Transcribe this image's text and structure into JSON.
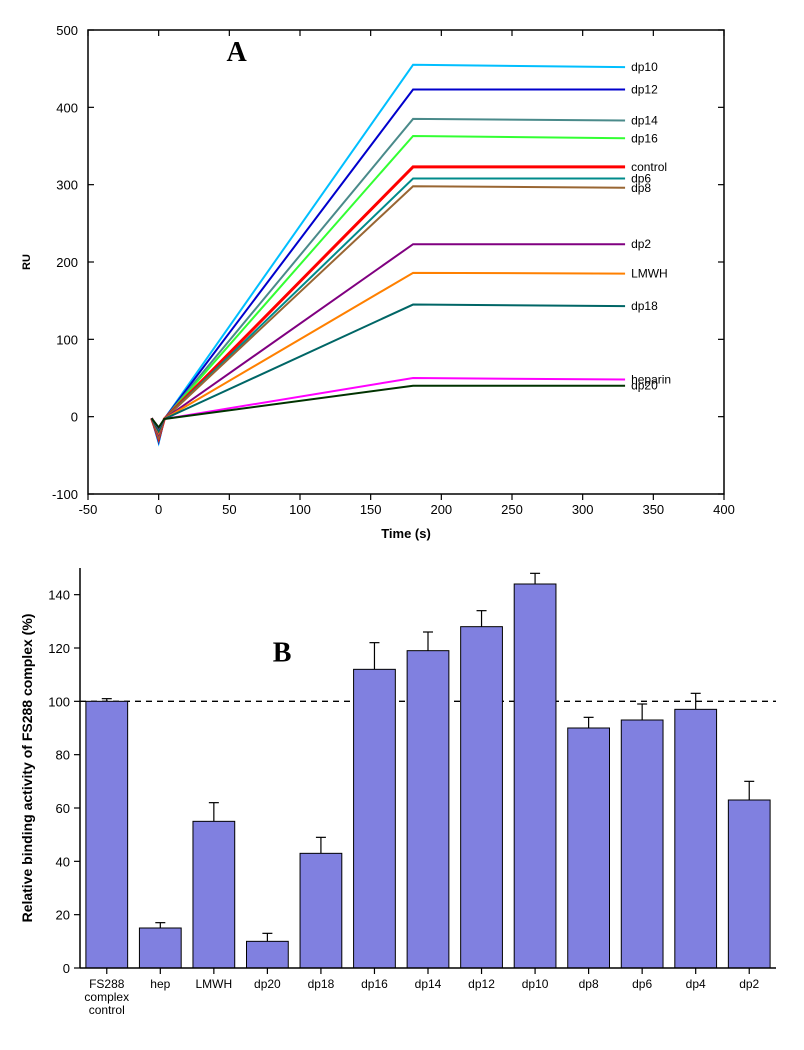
{
  "panelA": {
    "type": "line",
    "panel_label": "A",
    "xlabel": "Time (s)",
    "ylabel": "RU",
    "xlim": [
      -50,
      400
    ],
    "ylim": [
      -100,
      500
    ],
    "xtick_step": 50,
    "ytick_step": 100,
    "background_color": "#ffffff",
    "axis_color": "#000000",
    "grid": false,
    "line_width": 2,
    "inject_x": 0,
    "plateau_x": 180,
    "end_x": 330,
    "inject_dip": -40,
    "series": [
      {
        "name": "dp10",
        "color": "#00bfff",
        "plateau": 455,
        "end": 452
      },
      {
        "name": "dp12",
        "color": "#0000cc",
        "plateau": 423,
        "end": 423
      },
      {
        "name": "dp14",
        "color": "#4a8a8a",
        "plateau": 385,
        "end": 383
      },
      {
        "name": "dp16",
        "color": "#33ff33",
        "plateau": 363,
        "end": 360
      },
      {
        "name": "control",
        "color": "#ff0000",
        "plateau": 323,
        "end": 323,
        "bold": true
      },
      {
        "name": "dp6",
        "color": "#008b8b",
        "plateau": 308,
        "end": 308
      },
      {
        "name": "dp8",
        "color": "#996633",
        "plateau": 298,
        "end": 296
      },
      {
        "name": "dp2",
        "color": "#800080",
        "plateau": 223,
        "end": 223
      },
      {
        "name": "LMWH",
        "color": "#ff8000",
        "plateau": 186,
        "end": 185
      },
      {
        "name": "dp18",
        "color": "#006666",
        "plateau": 145,
        "end": 143
      },
      {
        "name": "heparin",
        "color": "#ff00ff",
        "plateau": 50,
        "end": 48
      },
      {
        "name": "dp20",
        "color": "#003300",
        "plateau": 40,
        "end": 40
      }
    ]
  },
  "panelB": {
    "type": "bar",
    "panel_label": "B",
    "ylabel": "Relative binding activity of FS288 complex (%)",
    "ylim": [
      0,
      150
    ],
    "ytick_step": 20,
    "yticks": [
      0,
      20,
      40,
      60,
      80,
      100,
      120,
      140
    ],
    "ref_line": 100,
    "ref_line_dash": "6,5",
    "ref_line_color": "#000000",
    "background_color": "#ffffff",
    "axis_color": "#000000",
    "bar_color": "#8080e0",
    "bar_stroke": "#000000",
    "error_color": "#000000",
    "bar_width_ratio": 0.78,
    "categories": [
      {
        "label": "FS288\ncomplex\ncontrol",
        "value": 100,
        "err": 1
      },
      {
        "label": "hep",
        "value": 15,
        "err": 2
      },
      {
        "label": "LMWH",
        "value": 55,
        "err": 7
      },
      {
        "label": "dp20",
        "value": 10,
        "err": 3
      },
      {
        "label": "dp18",
        "value": 43,
        "err": 6
      },
      {
        "label": "dp16",
        "value": 112,
        "err": 10
      },
      {
        "label": "dp14",
        "value": 119,
        "err": 7
      },
      {
        "label": "dp12",
        "value": 128,
        "err": 6
      },
      {
        "label": "dp10",
        "value": 144,
        "err": 4
      },
      {
        "label": "dp8",
        "value": 90,
        "err": 4
      },
      {
        "label": "dp6",
        "value": 93,
        "err": 6
      },
      {
        "label": "dp4",
        "value": 97,
        "err": 6
      },
      {
        "label": "dp2",
        "value": 63,
        "err": 7
      }
    ]
  }
}
